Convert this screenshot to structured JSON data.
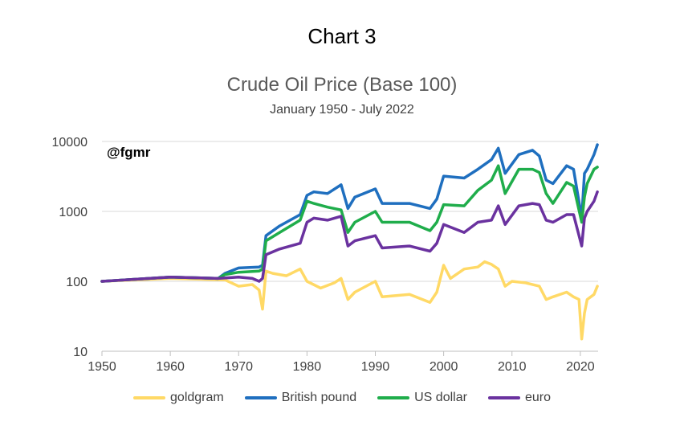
{
  "header": {
    "title": "Chart 3"
  },
  "watermark": "@fgmr",
  "chart_data": {
    "type": "line",
    "title": "Crude Oil Price (Base 100)",
    "subtitle": "January 1950 - July 2022",
    "xlabel": "",
    "ylabel": "",
    "x_ticks": [
      1950,
      1960,
      1970,
      1980,
      1990,
      2000,
      2010,
      2020
    ],
    "y_ticks": [
      10,
      100,
      1000,
      10000
    ],
    "y_tick_labels": [
      "10",
      "100",
      "1000",
      "10000"
    ],
    "y_scale": "log",
    "ylim": [
      10,
      10000
    ],
    "xlim": [
      1950,
      2022.6
    ],
    "grid": "horizontal",
    "legend_position": "bottom",
    "series": [
      {
        "name": "goldgram",
        "color": "#FFD966",
        "x": [
          1950,
          1960,
          1968,
          1970,
          1972,
          1973,
          1973.5,
          1974,
          1975,
          1977,
          1979,
          1980,
          1982,
          1984,
          1985,
          1986,
          1987,
          1990,
          1991,
          1995,
          1998,
          1999,
          2000,
          2001,
          2003,
          2005,
          2006,
          2007,
          2008,
          2009,
          2010,
          2012,
          2014,
          2015,
          2016,
          2018,
          2019,
          2019.8,
          2020.2,
          2020.6,
          2021,
          2022,
          2022.5
        ],
        "values": [
          100,
          110,
          105,
          85,
          90,
          75,
          40,
          140,
          130,
          120,
          150,
          100,
          80,
          95,
          110,
          55,
          70,
          100,
          60,
          65,
          50,
          70,
          170,
          110,
          150,
          160,
          190,
          175,
          150,
          85,
          100,
          95,
          85,
          55,
          60,
          70,
          60,
          55,
          15,
          35,
          55,
          65,
          85
        ]
      },
      {
        "name": "British pound",
        "color": "#1F6FBF",
        "x": [
          1950,
          1960,
          1967,
          1968,
          1970,
          1973,
          1973.5,
          1974,
          1976,
          1979,
          1980,
          1981,
          1983,
          1985,
          1986,
          1987,
          1990,
          1991,
          1995,
          1998,
          1999,
          2000,
          2003,
          2005,
          2007,
          2008,
          2009,
          2011,
          2013,
          2014,
          2015,
          2016,
          2018,
          2019,
          2020.2,
          2020.6,
          2021,
          2022,
          2022.5
        ],
        "values": [
          100,
          115,
          110,
          130,
          155,
          160,
          170,
          450,
          620,
          900,
          1700,
          1900,
          1800,
          2400,
          1100,
          1600,
          2100,
          1300,
          1300,
          1100,
          1500,
          3200,
          3000,
          4000,
          5500,
          8000,
          3500,
          6500,
          7500,
          6200,
          2800,
          2500,
          4500,
          4000,
          800,
          3500,
          4000,
          6500,
          9000
        ]
      },
      {
        "name": "US dollar",
        "color": "#1FAD4B",
        "x": [
          1950,
          1960,
          1967,
          1968,
          1970,
          1973,
          1973.5,
          1974,
          1976,
          1979,
          1980,
          1981,
          1983,
          1985,
          1986,
          1987,
          1990,
          1991,
          1995,
          1998,
          1999,
          2000,
          2003,
          2005,
          2007,
          2008,
          2009,
          2011,
          2013,
          2014,
          2015,
          2016,
          2018,
          2019,
          2020.2,
          2020.6,
          2021,
          2022,
          2022.5
        ],
        "values": [
          100,
          115,
          110,
          125,
          135,
          140,
          150,
          380,
          500,
          750,
          1400,
          1300,
          1150,
          1050,
          500,
          700,
          1000,
          700,
          700,
          530,
          700,
          1250,
          1200,
          2000,
          2800,
          4500,
          1800,
          4000,
          4000,
          3600,
          1800,
          1300,
          2600,
          2300,
          700,
          1600,
          2500,
          4000,
          4300
        ]
      },
      {
        "name": "euro",
        "color": "#6A329F",
        "x": [
          1950,
          1960,
          1967,
          1970,
          1972,
          1973,
          1973.5,
          1974,
          1976,
          1979,
          1980,
          1981,
          1983,
          1985,
          1986,
          1987,
          1990,
          1991,
          1995,
          1998,
          1999,
          2000,
          2003,
          2005,
          2007,
          2008,
          2009,
          2011,
          2013,
          2014,
          2015,
          2016,
          2018,
          2019,
          2020.2,
          2020.6,
          2021,
          2022,
          2022.5
        ],
        "values": [
          100,
          115,
          110,
          115,
          110,
          100,
          110,
          240,
          290,
          350,
          700,
          800,
          750,
          850,
          320,
          380,
          450,
          300,
          320,
          270,
          350,
          650,
          500,
          700,
          750,
          1200,
          650,
          1200,
          1300,
          1250,
          750,
          700,
          900,
          900,
          320,
          800,
          1000,
          1400,
          1900
        ]
      }
    ]
  }
}
